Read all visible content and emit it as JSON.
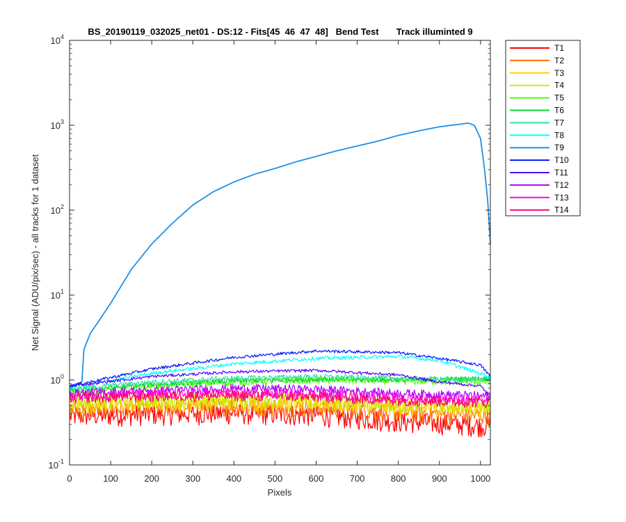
{
  "chart_data": {
    "type": "line",
    "title": "BS_20190119_032025_net01 - DS:12 - Fits[45  46  47  48]   Bend Test       Track illuminted 9",
    "xlabel": "Pixels",
    "ylabel": "Net Signal (ADU/pix/sec) - all tracks for 1 dataset",
    "xlim": [
      0,
      1024
    ],
    "ylim": [
      0.1,
      10000
    ],
    "yscale": "log",
    "grid": false,
    "legend_position": "outside-right",
    "x_ticks": [
      "0",
      "100",
      "200",
      "300",
      "400",
      "500",
      "600",
      "700",
      "800",
      "900",
      "1000"
    ],
    "y_ticks": [
      {
        "base": "10",
        "exp": "-1"
      },
      {
        "base": "10",
        "exp": "0"
      },
      {
        "base": "10",
        "exp": "1"
      },
      {
        "base": "10",
        "exp": "2"
      },
      {
        "base": "10",
        "exp": "3"
      },
      {
        "base": "10",
        "exp": "4"
      }
    ],
    "series": [
      {
        "name": "T1",
        "color": "#ff0000",
        "noise": 0.28,
        "values": [
          [
            1,
            0.38
          ],
          [
            200,
            0.4
          ],
          [
            400,
            0.41
          ],
          [
            600,
            0.39
          ],
          [
            800,
            0.33
          ],
          [
            1024,
            0.29
          ]
        ]
      },
      {
        "name": "T2",
        "color": "#ff7000",
        "noise": 0.25,
        "values": [
          [
            1,
            0.45
          ],
          [
            200,
            0.48
          ],
          [
            400,
            0.5
          ],
          [
            600,
            0.48
          ],
          [
            800,
            0.42
          ],
          [
            1024,
            0.38
          ]
        ]
      },
      {
        "name": "T3",
        "color": "#ffd000",
        "noise": 0.22,
        "values": [
          [
            1,
            0.5
          ],
          [
            200,
            0.53
          ],
          [
            400,
            0.55
          ],
          [
            600,
            0.53
          ],
          [
            800,
            0.48
          ],
          [
            1024,
            0.45
          ]
        ]
      },
      {
        "name": "T4",
        "color": "#c8f000",
        "noise": 0.2,
        "values": [
          [
            1,
            0.56
          ],
          [
            200,
            0.58
          ],
          [
            400,
            0.6
          ],
          [
            600,
            0.58
          ],
          [
            800,
            0.52
          ],
          [
            1024,
            0.5
          ]
        ]
      },
      {
        "name": "T5",
        "color": "#55ff00",
        "noise": 0.1,
        "values": [
          [
            1,
            0.7
          ],
          [
            200,
            0.85
          ],
          [
            400,
            0.95
          ],
          [
            600,
            1.0
          ],
          [
            800,
            0.98
          ],
          [
            1024,
            0.95
          ]
        ]
      },
      {
        "name": "T6",
        "color": "#00d830",
        "noise": 0.07,
        "values": [
          [
            1,
            0.75
          ],
          [
            200,
            0.88
          ],
          [
            400,
            0.98
          ],
          [
            600,
            1.02
          ],
          [
            800,
            1.0
          ],
          [
            1024,
            1.05
          ]
        ]
      },
      {
        "name": "T7",
        "color": "#30e0a0",
        "noise": 0.07,
        "values": [
          [
            1,
            0.78
          ],
          [
            200,
            0.95
          ],
          [
            400,
            1.05
          ],
          [
            600,
            1.1
          ],
          [
            800,
            1.05
          ],
          [
            1024,
            1.0
          ]
        ]
      },
      {
        "name": "T8",
        "color": "#00ffff",
        "noise": 0.05,
        "values": [
          [
            1,
            0.8
          ],
          [
            200,
            1.2
          ],
          [
            400,
            1.55
          ],
          [
            600,
            1.8
          ],
          [
            800,
            1.9
          ],
          [
            900,
            1.7
          ],
          [
            1024,
            1.1
          ]
        ]
      },
      {
        "name": "T9",
        "color": "#1e90e8",
        "noise": 0.0,
        "values": [
          [
            1,
            0.85
          ],
          [
            30,
            0.95
          ],
          [
            35,
            2.3
          ],
          [
            50,
            3.5
          ],
          [
            100,
            8
          ],
          [
            150,
            20
          ],
          [
            200,
            40
          ],
          [
            250,
            70
          ],
          [
            300,
            115
          ],
          [
            350,
            165
          ],
          [
            400,
            215
          ],
          [
            450,
            265
          ],
          [
            500,
            310
          ],
          [
            550,
            370
          ],
          [
            600,
            430
          ],
          [
            650,
            500
          ],
          [
            700,
            570
          ],
          [
            750,
            650
          ],
          [
            800,
            760
          ],
          [
            850,
            860
          ],
          [
            900,
            960
          ],
          [
            950,
            1030
          ],
          [
            970,
            1060
          ],
          [
            985,
            1000
          ],
          [
            1000,
            700
          ],
          [
            1010,
            300
          ],
          [
            1018,
            120
          ],
          [
            1024,
            40
          ]
        ]
      },
      {
        "name": "T10",
        "color": "#0018ff",
        "noise": 0.04,
        "values": [
          [
            1,
            0.85
          ],
          [
            200,
            1.35
          ],
          [
            400,
            1.85
          ],
          [
            600,
            2.2
          ],
          [
            800,
            2.1
          ],
          [
            900,
            1.8
          ],
          [
            1000,
            1.5
          ],
          [
            1024,
            1.1
          ]
        ]
      },
      {
        "name": "T11",
        "color": "#5000ff",
        "noise": 0.04,
        "values": [
          [
            1,
            0.85
          ],
          [
            200,
            1.1
          ],
          [
            400,
            1.25
          ],
          [
            600,
            1.3
          ],
          [
            800,
            1.15
          ],
          [
            900,
            0.95
          ],
          [
            1000,
            0.85
          ],
          [
            1024,
            0.65
          ]
        ]
      },
      {
        "name": "T12",
        "color": "#b000ff",
        "noise": 0.12,
        "values": [
          [
            1,
            0.7
          ],
          [
            200,
            0.75
          ],
          [
            400,
            0.8
          ],
          [
            600,
            0.78
          ],
          [
            800,
            0.7
          ],
          [
            1024,
            0.65
          ]
        ]
      },
      {
        "name": "T13",
        "color": "#ff00e0",
        "noise": 0.14,
        "values": [
          [
            1,
            0.65
          ],
          [
            200,
            0.68
          ],
          [
            400,
            0.7
          ],
          [
            600,
            0.68
          ],
          [
            800,
            0.62
          ],
          [
            1024,
            0.58
          ]
        ]
      },
      {
        "name": "T14",
        "color": "#ff0070",
        "noise": 0.15,
        "values": [
          [
            1,
            0.62
          ],
          [
            200,
            0.65
          ],
          [
            400,
            0.66
          ],
          [
            600,
            0.64
          ],
          [
            800,
            0.58
          ],
          [
            1024,
            0.55
          ]
        ]
      }
    ]
  }
}
